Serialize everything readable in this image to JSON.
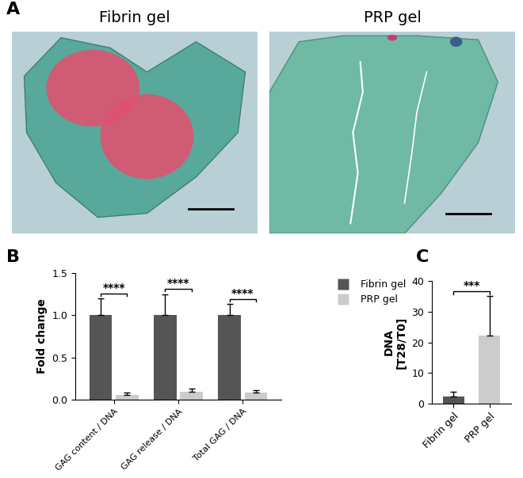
{
  "panel_labels": [
    "A",
    "B",
    "C"
  ],
  "images": {
    "titles": [
      "Fibrin gel",
      "PRP gel"
    ]
  },
  "chart_data": [
    {
      "type": "bar",
      "categories": [
        "GAG content / DNA",
        "GAG release / DNA",
        "Total GAG / DNA"
      ],
      "series": [
        {
          "name": "Fibrin gel",
          "color": "#555555",
          "values": [
            1.0,
            1.0,
            1.0
          ],
          "errors": [
            0.2,
            0.25,
            0.13
          ]
        },
        {
          "name": "PRP gel",
          "color": "#cccccc",
          "values": [
            0.06,
            0.09,
            0.08
          ],
          "errors": [
            0.02,
            0.04,
            0.03
          ]
        }
      ],
      "y_label": "Fold change",
      "ylim": [
        0,
        1.5
      ],
      "yticks": [
        {
          "value": 0,
          "label": "0.0"
        },
        {
          "value": 0.5,
          "label": "0.5"
        },
        {
          "value": 1,
          "label": "1.0"
        },
        {
          "value": 1.5,
          "label": "1.5"
        }
      ],
      "legend": "upper right",
      "annotations": [
        {
          "text": "****",
          "category": "GAG content / DNA"
        },
        {
          "text": "****",
          "category": "GAG release / DNA"
        },
        {
          "text": "****",
          "category": "Total GAG / DNA"
        }
      ]
    },
    {
      "type": "bar",
      "categories": [
        "Fibrin gel",
        "PRP gel"
      ],
      "values": [
        2.3,
        22.3
      ],
      "errors": [
        1.7,
        12.8
      ],
      "colors": [
        "#555555",
        "#cccccc"
      ],
      "y_label": "DNA\n[T28/T0]",
      "ylim": [
        0,
        40
      ],
      "yticks": [
        0,
        10,
        20,
        30,
        40
      ],
      "annotations": [
        {
          "text": "***",
          "between": [
            "Fibrin gel",
            "PRP gel"
          ]
        }
      ]
    }
  ]
}
